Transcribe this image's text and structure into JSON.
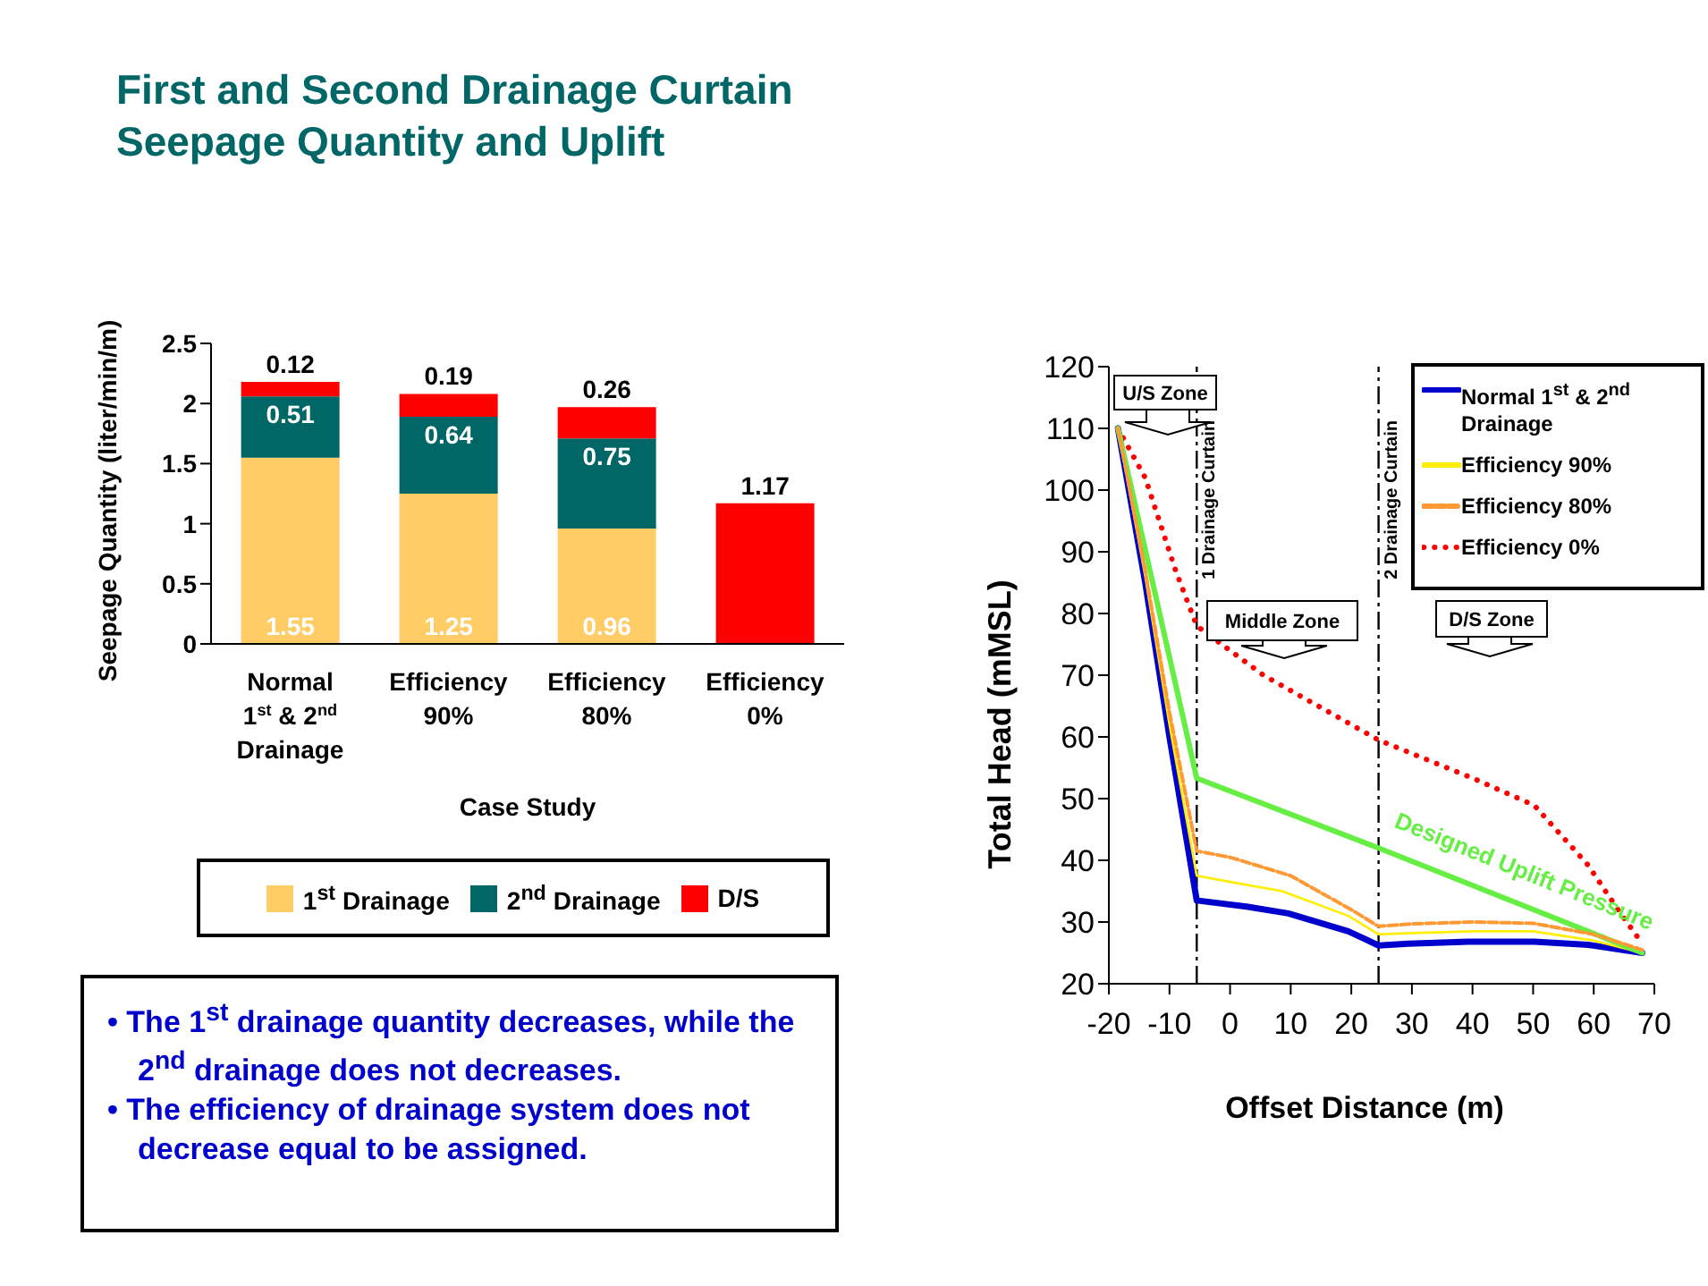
{
  "chart_data": [
    {
      "type": "bar",
      "title": "First and Second Drainage Curtain Seepage Quantity and Uplift",
      "xlabel": "Case Study",
      "ylabel": "Seepage Quantity (liter/min/m)",
      "categories": [
        "Normal 1$^{st}$ & 2$^{nd}$ Drainage",
        "Efficiency 90%",
        "Efficiency 80%",
        "Efficiency 0%"
      ],
      "series": [
        {
          "name": "1$^{st}$ Drainage",
          "color": "#ffcc66",
          "values": [
            1.55,
            1.25,
            0.96,
            null
          ]
        },
        {
          "name": "2$^{nd}$ Drainage",
          "color": "#006666",
          "values": [
            0.51,
            0.64,
            0.75,
            null
          ]
        },
        {
          "name": "D/S",
          "color": "#ff0000",
          "values": [
            0.12,
            0.19,
            0.26,
            1.17
          ]
        }
      ],
      "stacked": true,
      "ylim": [
        0,
        2.5
      ],
      "yticks": [
        0,
        0.5,
        1,
        1.5,
        2,
        2.5
      ],
      "data_labels": true,
      "legend": "bottom",
      "annotations": [
        "• The 1$^{st}$ drainage quantity decreases, while the 2$^{nd}$ drainage does not decreases.",
        "• The efficiency of drainage system does not decrease equal to be assigned."
      ]
    },
    {
      "type": "line",
      "xlabel": "Offset Distance (m)",
      "ylabel": "Total Head (mMSL)",
      "xlim": [
        -20,
        70
      ],
      "xticks": [
        -20,
        -10,
        0,
        10,
        20,
        30,
        40,
        50,
        60,
        70
      ],
      "ylim": [
        20,
        120
      ],
      "yticks": [
        20,
        30,
        40,
        50,
        60,
        70,
        80,
        90,
        100,
        110,
        120
      ],
      "legend": "top right",
      "series": [
        {
          "name": "Normal 1$^{st}$ & 2$^{nd}$ Drainage",
          "color": "#0000cc",
          "line_style": "solid",
          "x": [
            -18.5,
            -14,
            -10,
            -5.5,
            2.7,
            9.6,
            19.5,
            24.5,
            29.4,
            39.3,
            50.2,
            59.1,
            68
          ],
          "values": [
            110,
            85,
            60,
            33.5,
            32.5,
            31.4,
            28.5,
            26.2,
            26.5,
            26.8,
            26.8,
            26.3,
            25
          ]
        },
        {
          "name": "Efficiency 90%",
          "color": "#ffee00",
          "line_style": "solid",
          "x": [
            -18.5,
            -14,
            -10,
            -5.5,
            0,
            8.6,
            19.5,
            24.5,
            30,
            40,
            50,
            60,
            68
          ],
          "values": [
            110,
            86,
            62,
            37.5,
            36.5,
            35,
            31,
            28,
            28.2,
            28.5,
            28.5,
            27,
            25
          ]
        },
        {
          "name": "Efficiency 80%",
          "color": "#ff9933",
          "line_style": "dashed",
          "x": [
            -18.5,
            -14,
            -10,
            -5.5,
            0,
            10,
            20,
            24.5,
            30,
            40,
            50,
            60,
            68
          ],
          "values": [
            110,
            87,
            64,
            41.5,
            40.5,
            37.5,
            32,
            29.3,
            29.7,
            30,
            29.8,
            28,
            25.5
          ]
        },
        {
          "name": "Efficiency 0%",
          "color": "#ff0000",
          "line_style": "dotted",
          "x": [
            -18.5,
            -14,
            -9,
            -5.5,
            5.5,
            24.5,
            40.3,
            50.2,
            59,
            64,
            68
          ],
          "values": [
            110,
            102,
            87,
            78,
            70,
            59.5,
            53.2,
            48.9,
            39.3,
            32,
            26.5
          ]
        },
        {
          "color": "#66ee44",
          "line_style": "solid",
          "x": [
            -18.5,
            -5.5,
            24.5,
            68
          ],
          "values": [
            110,
            53.3,
            42,
            25
          ]
        }
      ],
      "ref_lines": [
        {
          "axis": "x",
          "value": -5.5,
          "label": "1 Drainage Curtain",
          "color": "#000000",
          "line_style": "dashed"
        },
        {
          "axis": "x",
          "value": 24.5,
          "label": "2 Drainage Curtain",
          "color": "#000000",
          "line_style": "dashed"
        }
      ],
      "annotations": [
        "U/S Zone",
        "Middle Zone",
        "D/S Zone",
        "Designed Uplift Pressure"
      ]
    }
  ]
}
